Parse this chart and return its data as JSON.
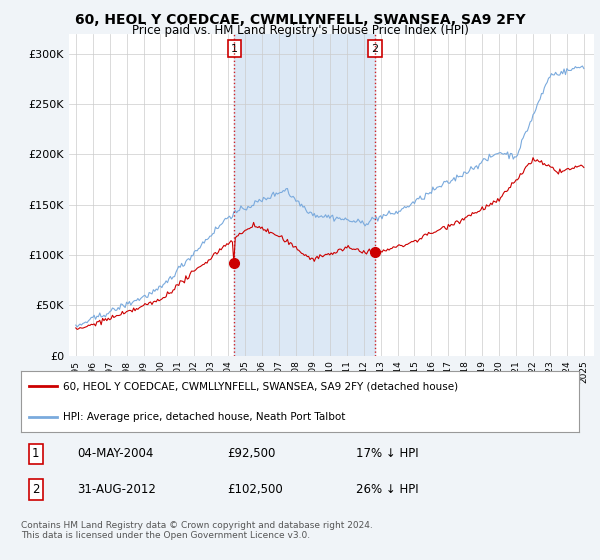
{
  "title": "60, HEOL Y COEDCAE, CWMLLYNFELL, SWANSEA, SA9 2FY",
  "subtitle": "Price paid vs. HM Land Registry's House Price Index (HPI)",
  "background_color": "#f0f4f8",
  "plot_bg_color": "#ffffff",
  "hpi_color": "#7aaadd",
  "price_color": "#cc0000",
  "shaded_color": "#dce8f5",
  "marker1_year": 2004.37,
  "marker2_year": 2012.67,
  "marker1_price": 92500,
  "marker2_price": 102500,
  "legend_line1": "60, HEOL Y COEDCAE, CWMLLYNFELL, SWANSEA, SA9 2FY (detached house)",
  "legend_line2": "HPI: Average price, detached house, Neath Port Talbot",
  "table_row1": [
    "1",
    "04-MAY-2004",
    "£92,500",
    "17% ↓ HPI"
  ],
  "table_row2": [
    "2",
    "31-AUG-2012",
    "£102,500",
    "26% ↓ HPI"
  ],
  "footer": "Contains HM Land Registry data © Crown copyright and database right 2024.\nThis data is licensed under the Open Government Licence v3.0.",
  "yticks": [
    0,
    50000,
    100000,
    150000,
    200000,
    250000,
    300000
  ],
  "ytick_labels": [
    "£0",
    "£50K",
    "£100K",
    "£150K",
    "£200K",
    "£250K",
    "£300K"
  ]
}
